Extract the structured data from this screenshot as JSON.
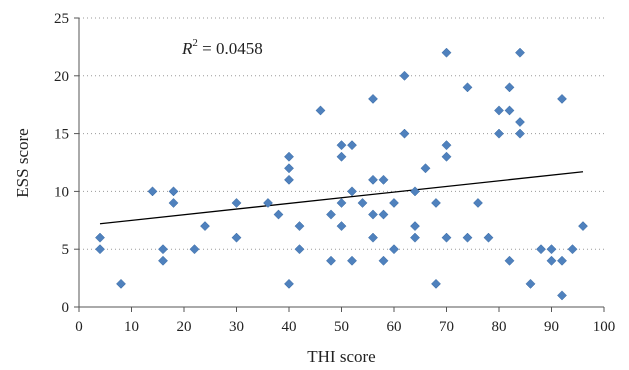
{
  "chart_data": {
    "type": "scatter",
    "xlabel": "THI score",
    "ylabel": "ESS score",
    "xlim": [
      0,
      100
    ],
    "ylim": [
      0,
      25
    ],
    "x_ticks": [
      0,
      10,
      20,
      30,
      40,
      50,
      60,
      70,
      80,
      90,
      100
    ],
    "y_ticks": [
      0,
      5,
      10,
      15,
      20,
      25
    ],
    "grid": "horizontal dotted",
    "marker_color": "#4f81bd",
    "trendline": {
      "type": "linear",
      "x": [
        4,
        96
      ],
      "y": [
        7.2,
        11.7
      ],
      "color": "#000000"
    },
    "annotation": {
      "prefix": "R",
      "superscript": "2",
      "text": " = 0.0458"
    },
    "points": [
      {
        "x": 4,
        "y": 6
      },
      {
        "x": 4,
        "y": 5
      },
      {
        "x": 8,
        "y": 2
      },
      {
        "x": 14,
        "y": 10
      },
      {
        "x": 16,
        "y": 5
      },
      {
        "x": 16,
        "y": 4
      },
      {
        "x": 18,
        "y": 10
      },
      {
        "x": 18,
        "y": 9
      },
      {
        "x": 22,
        "y": 5
      },
      {
        "x": 24,
        "y": 7
      },
      {
        "x": 30,
        "y": 9
      },
      {
        "x": 30,
        "y": 6
      },
      {
        "x": 36,
        "y": 9
      },
      {
        "x": 38,
        "y": 8
      },
      {
        "x": 40,
        "y": 13
      },
      {
        "x": 40,
        "y": 12
      },
      {
        "x": 40,
        "y": 11
      },
      {
        "x": 40,
        "y": 2
      },
      {
        "x": 42,
        "y": 7
      },
      {
        "x": 42,
        "y": 5
      },
      {
        "x": 46,
        "y": 17
      },
      {
        "x": 48,
        "y": 8
      },
      {
        "x": 48,
        "y": 4
      },
      {
        "x": 50,
        "y": 14
      },
      {
        "x": 50,
        "y": 13
      },
      {
        "x": 50,
        "y": 9
      },
      {
        "x": 50,
        "y": 7
      },
      {
        "x": 52,
        "y": 14
      },
      {
        "x": 52,
        "y": 10
      },
      {
        "x": 52,
        "y": 4
      },
      {
        "x": 54,
        "y": 9
      },
      {
        "x": 56,
        "y": 18
      },
      {
        "x": 56,
        "y": 11
      },
      {
        "x": 56,
        "y": 8
      },
      {
        "x": 56,
        "y": 6
      },
      {
        "x": 58,
        "y": 11
      },
      {
        "x": 58,
        "y": 8
      },
      {
        "x": 58,
        "y": 4
      },
      {
        "x": 60,
        "y": 9
      },
      {
        "x": 60,
        "y": 5
      },
      {
        "x": 62,
        "y": 20
      },
      {
        "x": 62,
        "y": 15
      },
      {
        "x": 64,
        "y": 10
      },
      {
        "x": 64,
        "y": 7
      },
      {
        "x": 64,
        "y": 6
      },
      {
        "x": 66,
        "y": 12
      },
      {
        "x": 68,
        "y": 9
      },
      {
        "x": 68,
        "y": 2
      },
      {
        "x": 70,
        "y": 22
      },
      {
        "x": 70,
        "y": 14
      },
      {
        "x": 70,
        "y": 13
      },
      {
        "x": 70,
        "y": 6
      },
      {
        "x": 74,
        "y": 19
      },
      {
        "x": 74,
        "y": 6
      },
      {
        "x": 76,
        "y": 9
      },
      {
        "x": 78,
        "y": 6
      },
      {
        "x": 80,
        "y": 17
      },
      {
        "x": 80,
        "y": 15
      },
      {
        "x": 82,
        "y": 19
      },
      {
        "x": 82,
        "y": 17
      },
      {
        "x": 82,
        "y": 4
      },
      {
        "x": 84,
        "y": 22
      },
      {
        "x": 84,
        "y": 16
      },
      {
        "x": 84,
        "y": 15
      },
      {
        "x": 86,
        "y": 2
      },
      {
        "x": 88,
        "y": 5
      },
      {
        "x": 90,
        "y": 5
      },
      {
        "x": 90,
        "y": 4
      },
      {
        "x": 92,
        "y": 18
      },
      {
        "x": 92,
        "y": 4
      },
      {
        "x": 92,
        "y": 1
      },
      {
        "x": 94,
        "y": 5
      },
      {
        "x": 96,
        "y": 7
      }
    ]
  }
}
